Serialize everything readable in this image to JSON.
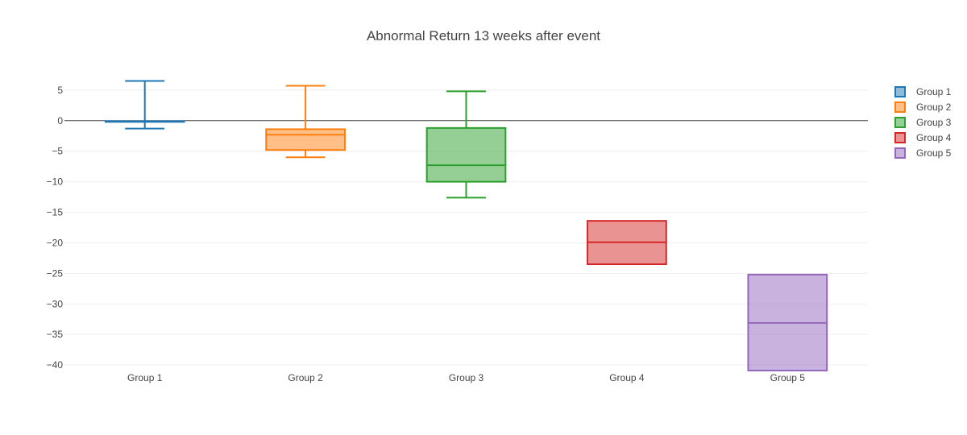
{
  "chart_data": {
    "type": "box",
    "title": "Abnormal Return 13 weeks after event",
    "xlabel": "",
    "ylabel": "",
    "ylim": [
      -40.9,
      9.2
    ],
    "yticks": [
      5,
      0,
      -5,
      -10,
      -15,
      -20,
      -25,
      -30,
      -35,
      -40
    ],
    "grid": true,
    "zeroline": true,
    "legend_position": "top-right",
    "categories": [
      "Group 1",
      "Group 2",
      "Group 3",
      "Group 4",
      "Group 5"
    ],
    "series": [
      {
        "name": "Group 1",
        "color": "#1f77b4",
        "min": -1.3,
        "q1": -0.2,
        "median": -0.1,
        "q3": -0.1,
        "max": 6.5
      },
      {
        "name": "Group 2",
        "color": "#ff7f0e",
        "min": -6.0,
        "q1": -4.8,
        "median": -2.3,
        "q3": -1.4,
        "max": 5.7
      },
      {
        "name": "Group 3",
        "color": "#2ca02c",
        "min": -12.6,
        "q1": -10.0,
        "median": -7.3,
        "q3": -1.2,
        "max": 4.8
      },
      {
        "name": "Group 4",
        "color": "#d62728",
        "min": -23.5,
        "q1": -23.5,
        "median": -19.9,
        "q3": -16.4,
        "max": -16.4
      },
      {
        "name": "Group 5",
        "color": "#9467bd",
        "min": -40.9,
        "q1": -40.9,
        "median": -33.1,
        "q3": -25.2,
        "max": -25.2
      }
    ]
  }
}
